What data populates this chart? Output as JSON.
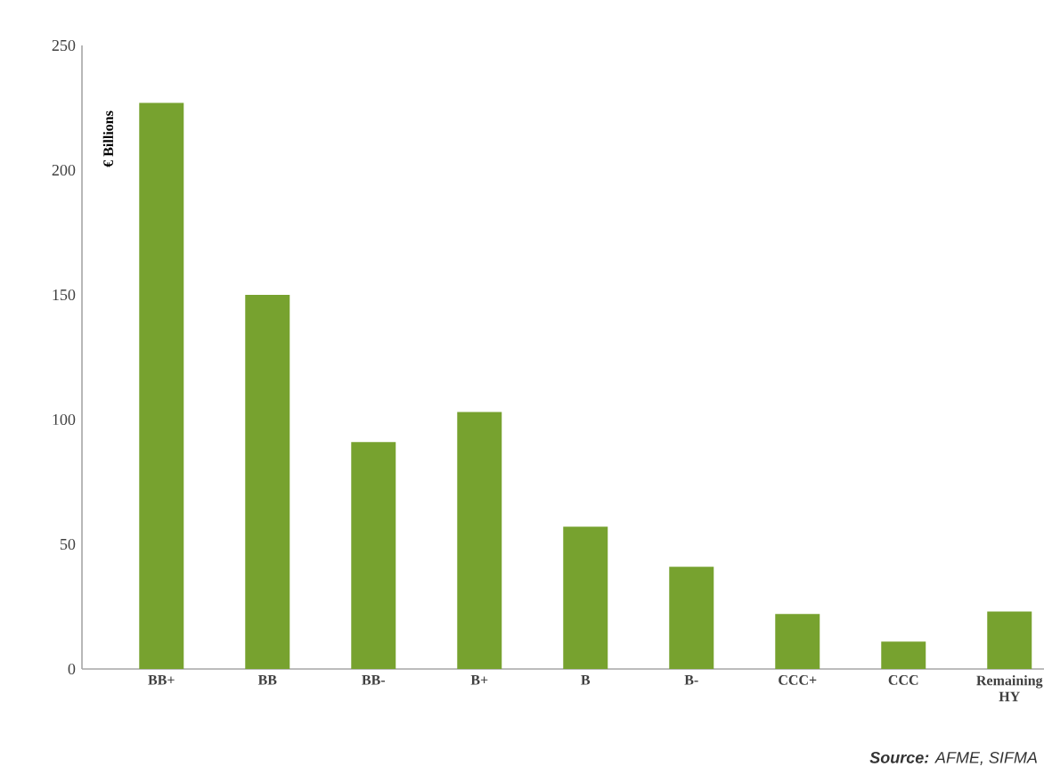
{
  "chart_data": {
    "type": "bar",
    "ylabel": "€ Billions",
    "categories": [
      "BB+",
      "BB",
      "BB-",
      "B+",
      "B",
      "B-",
      "CCC+",
      "CCC",
      "Remaining HY"
    ],
    "values": [
      227,
      150,
      91,
      103,
      57,
      41,
      22,
      11,
      23
    ],
    "color": "#77a22f",
    "ylim": [
      0,
      250
    ],
    "yticks": [
      0,
      50,
      100,
      150,
      200,
      250
    ],
    "annotations": [
      "**Source:** AFME, SIFMA"
    ]
  }
}
